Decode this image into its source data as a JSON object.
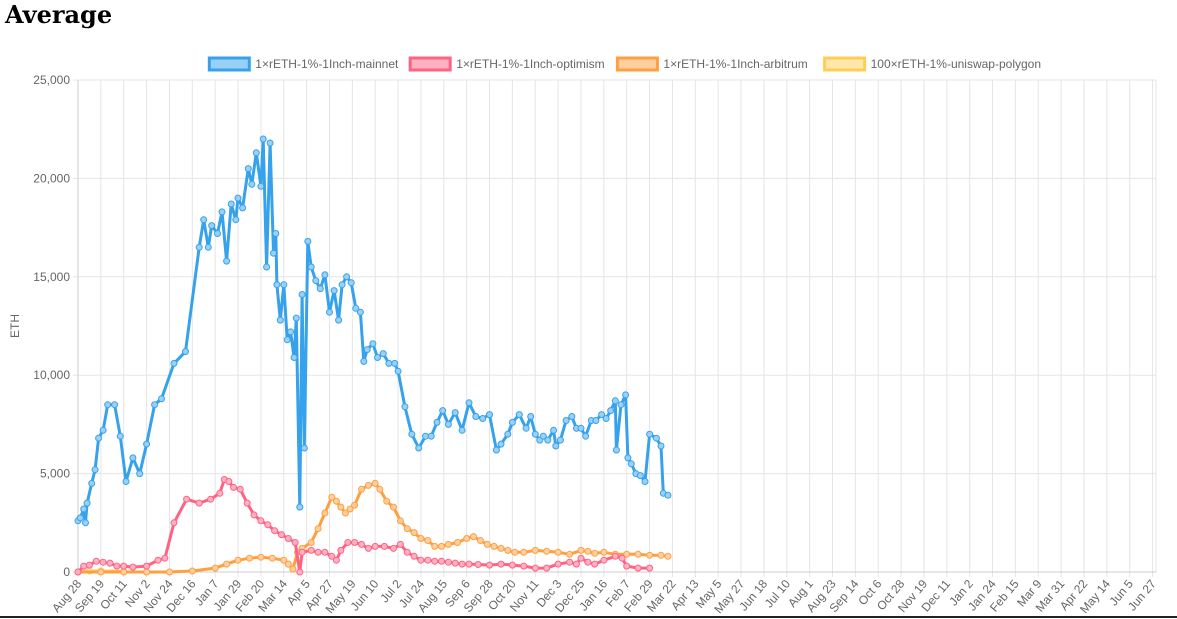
{
  "page": {
    "title": "Average"
  },
  "chart_data": {
    "type": "line",
    "title": "",
    "xlabel": "",
    "ylabel": "ETH",
    "ylim": [
      0,
      25000
    ],
    "yticks": [
      0,
      5000,
      10000,
      15000,
      20000,
      25000
    ],
    "ytick_labels": [
      "0",
      "5,000",
      "10,000",
      "15,000",
      "20,000",
      "25,000"
    ],
    "grid": true,
    "legend_position": "top",
    "x_tick_labels": [
      "Aug 28",
      "Sep 19",
      "Oct 11",
      "Nov 2",
      "Nov 24",
      "Dec 16",
      "Jan 7",
      "Jan 29",
      "Feb 20",
      "Mar 14",
      "Apr 5",
      "Apr 27",
      "May 19",
      "Jun 10",
      "Jul 2",
      "Jul 24",
      "Aug 15",
      "Sep 6",
      "Sep 28",
      "Oct 20",
      "Nov 11",
      "Dec 3",
      "Dec 25",
      "Jan 16",
      "Feb 7",
      "Feb 29",
      "Mar 22",
      "Apr 13",
      "May 5",
      "May 27",
      "Jun 18",
      "Jul 10",
      "Aug 1",
      "Aug 23",
      "Sep 14",
      "Oct 6",
      "Oct 28",
      "Nov 19",
      "Dec 11",
      "Jan 2",
      "Jan 24",
      "Feb 15",
      "Mar 9",
      "Mar 31",
      "Apr 22",
      "May 14",
      "Jun 5",
      "Jun 27"
    ],
    "series": [
      {
        "name": "1×rETH-1%-1Inch-mainnet",
        "color": "#36a2eb",
        "fill": "#9ad0f5",
        "points": [
          [
            0,
            2600
          ],
          [
            0.1,
            2750
          ],
          [
            0.25,
            3200
          ],
          [
            0.33,
            2500
          ],
          [
            0.4,
            3500
          ],
          [
            0.6,
            4500
          ],
          [
            0.75,
            5200
          ],
          [
            0.9,
            6800
          ],
          [
            1.1,
            7200
          ],
          [
            1.3,
            8500
          ],
          [
            1.6,
            8500
          ],
          [
            1.85,
            6900
          ],
          [
            2.1,
            4600
          ],
          [
            2.4,
            5800
          ],
          [
            2.7,
            5000
          ],
          [
            3.0,
            6500
          ],
          [
            3.35,
            8500
          ],
          [
            3.65,
            8800
          ],
          [
            4.2,
            10600
          ],
          [
            4.7,
            11200
          ],
          [
            5.3,
            16500
          ],
          [
            5.5,
            17900
          ],
          [
            5.7,
            16500
          ],
          [
            5.85,
            17600
          ],
          [
            6.1,
            17200
          ],
          [
            6.3,
            18300
          ],
          [
            6.5,
            15800
          ],
          [
            6.7,
            18700
          ],
          [
            6.9,
            17900
          ],
          [
            7.0,
            19000
          ],
          [
            7.2,
            18500
          ],
          [
            7.45,
            20500
          ],
          [
            7.6,
            19700
          ],
          [
            7.8,
            21300
          ],
          [
            8.0,
            19600
          ],
          [
            8.1,
            22000
          ],
          [
            8.25,
            15500
          ],
          [
            8.4,
            21800
          ],
          [
            8.55,
            16200
          ],
          [
            8.65,
            17200
          ],
          [
            8.7,
            14600
          ],
          [
            8.85,
            12800
          ],
          [
            9.0,
            14600
          ],
          [
            9.15,
            11800
          ],
          [
            9.3,
            12200
          ],
          [
            9.45,
            10900
          ],
          [
            9.55,
            12900
          ],
          [
            9.7,
            3300
          ],
          [
            9.8,
            14100
          ],
          [
            9.9,
            6300
          ],
          [
            10.05,
            16800
          ],
          [
            10.2,
            15500
          ],
          [
            10.4,
            14800
          ],
          [
            10.6,
            14400
          ],
          [
            10.8,
            15100
          ],
          [
            11.0,
            13200
          ],
          [
            11.2,
            14300
          ],
          [
            11.4,
            12800
          ],
          [
            11.55,
            14600
          ],
          [
            11.75,
            15000
          ],
          [
            11.95,
            14700
          ],
          [
            12.15,
            13400
          ],
          [
            12.35,
            13200
          ],
          [
            12.5,
            10700
          ],
          [
            12.65,
            11300
          ],
          [
            12.9,
            11600
          ],
          [
            13.1,
            10900
          ],
          [
            13.35,
            11100
          ],
          [
            13.6,
            10600
          ],
          [
            13.85,
            10600
          ],
          [
            14.0,
            10200
          ],
          [
            14.3,
            8400
          ],
          [
            14.6,
            7000
          ],
          [
            14.9,
            6300
          ],
          [
            15.2,
            6900
          ],
          [
            15.45,
            6900
          ],
          [
            15.7,
            7600
          ],
          [
            15.95,
            8200
          ],
          [
            16.2,
            7500
          ],
          [
            16.5,
            8100
          ],
          [
            16.8,
            7200
          ],
          [
            17.1,
            8600
          ],
          [
            17.4,
            7900
          ],
          [
            17.7,
            7800
          ],
          [
            18.0,
            8000
          ],
          [
            18.3,
            6200
          ],
          [
            18.5,
            6500
          ],
          [
            18.8,
            7000
          ],
          [
            19.0,
            7600
          ],
          [
            19.3,
            8000
          ],
          [
            19.6,
            7300
          ],
          [
            19.8,
            7900
          ],
          [
            20.0,
            7000
          ],
          [
            20.2,
            6700
          ],
          [
            20.35,
            6900
          ],
          [
            20.55,
            6700
          ],
          [
            20.8,
            7200
          ],
          [
            20.9,
            6400
          ],
          [
            21.1,
            6700
          ],
          [
            21.35,
            7700
          ],
          [
            21.6,
            7900
          ],
          [
            21.8,
            7300
          ],
          [
            22.0,
            7300
          ],
          [
            22.2,
            6900
          ],
          [
            22.45,
            7700
          ],
          [
            22.65,
            7700
          ],
          [
            22.9,
            8000
          ],
          [
            23.1,
            7800
          ],
          [
            23.3,
            8200
          ],
          [
            23.5,
            8700
          ],
          [
            23.55,
            6200
          ],
          [
            23.75,
            8500
          ],
          [
            23.95,
            9000
          ],
          [
            24.05,
            5800
          ],
          [
            24.2,
            5500
          ],
          [
            24.4,
            5000
          ],
          [
            24.6,
            4900
          ],
          [
            24.8,
            4600
          ],
          [
            25.0,
            7000
          ],
          [
            25.3,
            6800
          ],
          [
            25.5,
            6400
          ],
          [
            25.6,
            4000
          ],
          [
            25.8,
            3900
          ]
        ]
      },
      {
        "name": "1×rETH-1%-1Inch-optimism",
        "color": "#ff6384",
        "fill": "#ffb1c1",
        "points": [
          [
            0,
            0
          ],
          [
            0.25,
            300
          ],
          [
            0.5,
            350
          ],
          [
            0.8,
            550
          ],
          [
            1.1,
            500
          ],
          [
            1.4,
            450
          ],
          [
            1.7,
            300
          ],
          [
            2.0,
            300
          ],
          [
            2.4,
            250
          ],
          [
            3.0,
            300
          ],
          [
            3.5,
            600
          ],
          [
            3.8,
            700
          ],
          [
            4.2,
            2500
          ],
          [
            4.75,
            3700
          ],
          [
            5.3,
            3500
          ],
          [
            5.8,
            3700
          ],
          [
            6.2,
            4000
          ],
          [
            6.4,
            4700
          ],
          [
            6.6,
            4600
          ],
          [
            6.8,
            4300
          ],
          [
            7.1,
            4200
          ],
          [
            7.4,
            3500
          ],
          [
            7.7,
            2900
          ],
          [
            8.0,
            2600
          ],
          [
            8.3,
            2400
          ],
          [
            8.6,
            2100
          ],
          [
            8.9,
            1900
          ],
          [
            9.2,
            1700
          ],
          [
            9.5,
            1500
          ],
          [
            9.7,
            0
          ],
          [
            9.8,
            1000
          ],
          [
            10.2,
            1100
          ],
          [
            10.5,
            1000
          ],
          [
            10.8,
            1000
          ],
          [
            11.1,
            800
          ],
          [
            11.3,
            600
          ],
          [
            11.5,
            1100
          ],
          [
            11.8,
            1500
          ],
          [
            12.1,
            1500
          ],
          [
            12.4,
            1400
          ],
          [
            12.7,
            1200
          ],
          [
            13.0,
            1300
          ],
          [
            13.4,
            1300
          ],
          [
            13.8,
            1200
          ],
          [
            14.1,
            1400
          ],
          [
            14.4,
            1000
          ],
          [
            14.7,
            800
          ],
          [
            15.0,
            600
          ],
          [
            15.3,
            600
          ],
          [
            15.6,
            550
          ],
          [
            15.9,
            550
          ],
          [
            16.2,
            500
          ],
          [
            16.5,
            450
          ],
          [
            16.8,
            400
          ],
          [
            17.1,
            400
          ],
          [
            17.5,
            380
          ],
          [
            18.0,
            350
          ],
          [
            18.5,
            400
          ],
          [
            19.0,
            350
          ],
          [
            19.5,
            300
          ],
          [
            20.0,
            200
          ],
          [
            20.5,
            200
          ],
          [
            21.0,
            400
          ],
          [
            21.5,
            500
          ],
          [
            21.8,
            400
          ],
          [
            22.0,
            700
          ],
          [
            22.3,
            500
          ],
          [
            22.6,
            400
          ],
          [
            23.0,
            600
          ],
          [
            23.5,
            800
          ],
          [
            23.8,
            700
          ],
          [
            24.0,
            300
          ],
          [
            24.5,
            200
          ],
          [
            25.0,
            200
          ]
        ]
      },
      {
        "name": "1×rETH-1%-1Inch-arbitrum",
        "color": "#ff9f40",
        "fill": "#ffcf9f",
        "points": [
          [
            0,
            0
          ],
          [
            1,
            0
          ],
          [
            2,
            0
          ],
          [
            3,
            0
          ],
          [
            4,
            0
          ],
          [
            5,
            50
          ],
          [
            6,
            200
          ],
          [
            6.5,
            400
          ],
          [
            7.0,
            600
          ],
          [
            7.5,
            700
          ],
          [
            8.0,
            750
          ],
          [
            8.5,
            700
          ],
          [
            9.0,
            600
          ],
          [
            9.2,
            400
          ],
          [
            9.4,
            150
          ],
          [
            9.6,
            1000
          ],
          [
            9.8,
            1200
          ],
          [
            10.2,
            1500
          ],
          [
            10.5,
            2200
          ],
          [
            10.8,
            3000
          ],
          [
            11.1,
            3800
          ],
          [
            11.3,
            3600
          ],
          [
            11.5,
            3300
          ],
          [
            11.7,
            3000
          ],
          [
            11.9,
            3200
          ],
          [
            12.1,
            3400
          ],
          [
            12.4,
            4200
          ],
          [
            12.7,
            4400
          ],
          [
            13.0,
            4500
          ],
          [
            13.2,
            4200
          ],
          [
            13.5,
            3600
          ],
          [
            13.8,
            3300
          ],
          [
            14.1,
            2600
          ],
          [
            14.4,
            2200
          ],
          [
            14.7,
            2000
          ],
          [
            15.0,
            1700
          ],
          [
            15.3,
            1600
          ],
          [
            15.6,
            1300
          ],
          [
            15.9,
            1300
          ],
          [
            16.2,
            1400
          ],
          [
            16.6,
            1500
          ],
          [
            17.0,
            1700
          ],
          [
            17.3,
            1800
          ],
          [
            17.6,
            1600
          ],
          [
            17.9,
            1400
          ],
          [
            18.2,
            1300
          ],
          [
            18.5,
            1200
          ],
          [
            18.8,
            1100
          ],
          [
            19.1,
            1000
          ],
          [
            19.5,
            1000
          ],
          [
            20.0,
            1100
          ],
          [
            20.5,
            1050
          ],
          [
            21.0,
            1000
          ],
          [
            21.5,
            900
          ],
          [
            22.0,
            1100
          ],
          [
            22.3,
            1050
          ],
          [
            22.6,
            950
          ],
          [
            23.0,
            1000
          ],
          [
            23.5,
            900
          ],
          [
            24.0,
            900
          ],
          [
            24.5,
            900
          ],
          [
            25.0,
            850
          ],
          [
            25.5,
            850
          ],
          [
            25.8,
            800
          ]
        ]
      },
      {
        "name": "100×rETH-1%-uniswap-polygon",
        "color": "#ffcd56",
        "fill": "#ffe6aa",
        "points": [
          [
            0,
            0
          ],
          [
            0.5,
            50
          ],
          [
            1,
            50
          ],
          [
            2,
            30
          ]
        ]
      }
    ]
  }
}
